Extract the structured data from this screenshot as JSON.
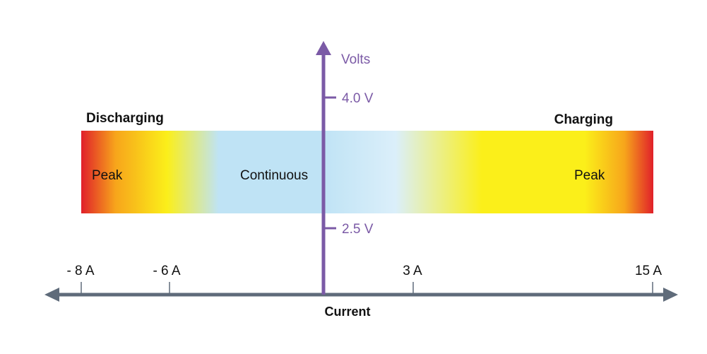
{
  "labels": {
    "discharging": "Discharging",
    "charging": "Charging",
    "peak_left": "Peak",
    "continuous": "Continuous",
    "peak_right": "Peak"
  },
  "voltage_axis": {
    "title": "Volts",
    "ticks": [
      "4.0 V",
      "2.5 V"
    ],
    "color": "#7b5aa6"
  },
  "current_axis": {
    "title": "Current",
    "ticks": [
      "- 8 A",
      "- 6 A",
      "3 A",
      "15 A"
    ],
    "color": "#5f6b7a"
  },
  "gradient_colors": {
    "peak": "#e0202a",
    "warm": "#f7a51b",
    "yellow": "#fbef1a",
    "continuous": "#bfe3f5",
    "light": "#dbeffa"
  }
}
